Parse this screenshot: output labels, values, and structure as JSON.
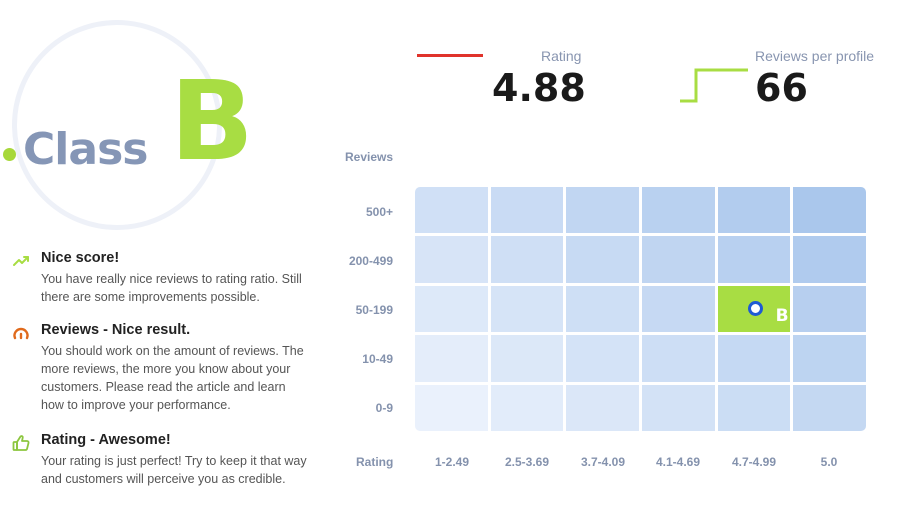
{
  "class_badge": {
    "word": "Class",
    "letter": "B"
  },
  "feedback": [
    {
      "icon": "trending-up-icon",
      "title": "Nice score!",
      "text": "You have really nice reviews to rating ratio. Still there are some improvements possible."
    },
    {
      "icon": "gauge-icon",
      "title": "Reviews - Nice result.",
      "text": "You should work on the amount of reviews. The more reviews, the more you know about your customers. Please read the article and learn how to improve your performance."
    },
    {
      "icon": "thumbs-up-icon",
      "title": "Rating - Awesome!",
      "text": "Your rating is just perfect! Try to keep it that way and customers will perceive you as credible."
    }
  ],
  "stats": {
    "rating": {
      "label": "Rating",
      "value": "4.88"
    },
    "reviews_per_profile": {
      "label": "Reviews per profile",
      "value": "66"
    }
  },
  "grid": {
    "y_title": "Reviews",
    "x_title": "Rating",
    "rows": [
      "500+",
      "200-499",
      "50-199",
      "10-49",
      "0-9"
    ],
    "cols": [
      "1-2.49",
      "2.5-3.69",
      "3.7-4.09",
      "4.1-4.69",
      "4.7-4.99",
      "5.0"
    ],
    "highlight": {
      "row": "50-199",
      "col": "4.7-4.99",
      "label": "B"
    }
  },
  "colors": {
    "accent_green": "#a8dd43",
    "rating_line": "#e0332b",
    "marker_blue": "#1f5ad4",
    "muted_label": "#8492ad"
  }
}
